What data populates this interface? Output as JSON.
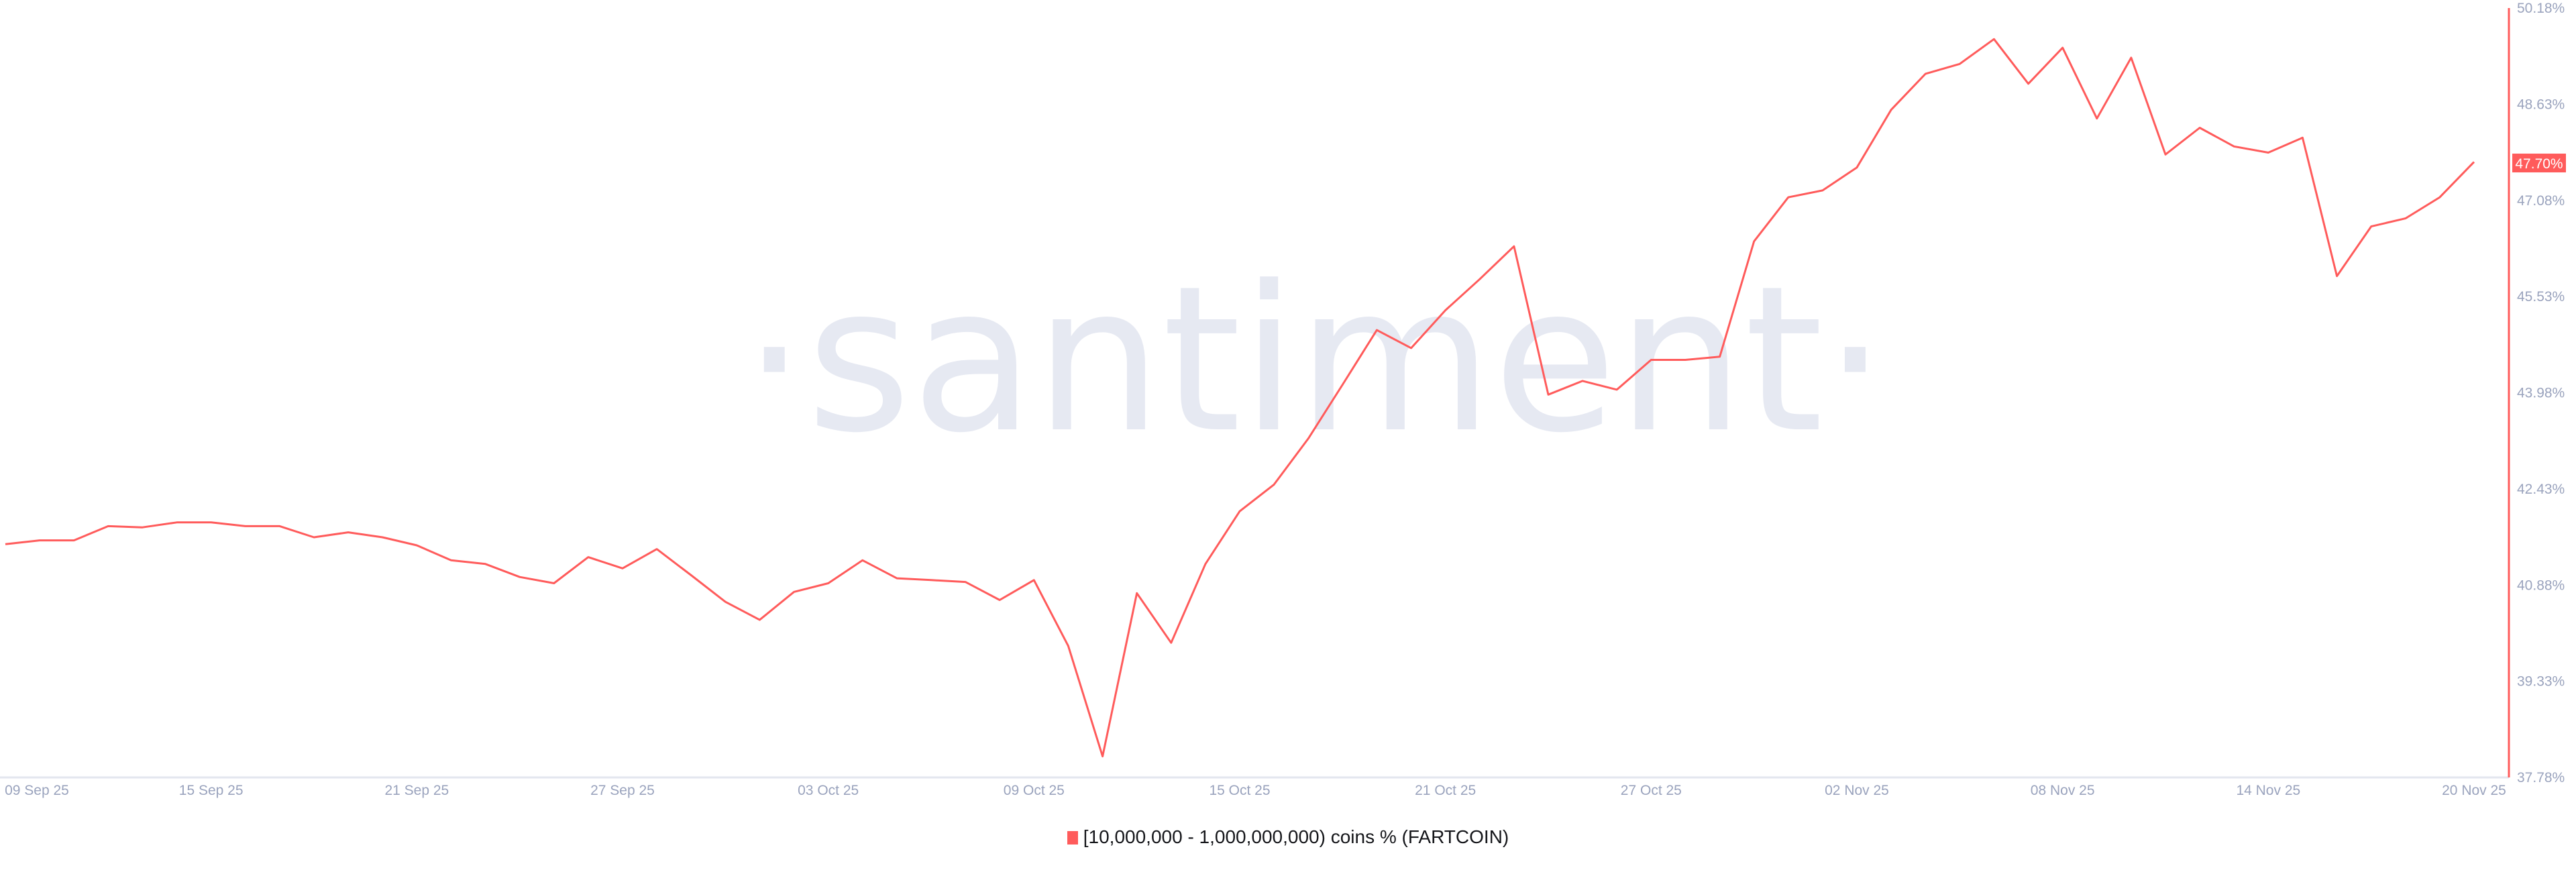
{
  "chart_data": {
    "type": "line",
    "watermark": "·santiment·",
    "series": [
      {
        "name": "[10,000,000 - 1,000,000,000) coins % (FARTCOIN)",
        "color": "#ff5b5b",
        "values": [
          41.54,
          41.6,
          41.6,
          41.83,
          41.81,
          41.89,
          41.89,
          41.83,
          41.83,
          41.65,
          41.73,
          41.65,
          41.52,
          41.28,
          41.22,
          41.01,
          40.91,
          41.33,
          41.15,
          41.46,
          41.04,
          40.61,
          40.32,
          40.77,
          40.91,
          41.28,
          40.99,
          40.96,
          40.93,
          40.64,
          40.96,
          39.9,
          38.12,
          40.75,
          39.95,
          41.22,
          42.07,
          42.5,
          43.24,
          44.11,
          44.99,
          44.7,
          45.31,
          45.81,
          46.34,
          43.95,
          44.17,
          44.03,
          44.51,
          44.51,
          44.56,
          46.42,
          47.13,
          47.24,
          47.61,
          48.54,
          49.12,
          49.28,
          49.68,
          48.96,
          49.54,
          48.4,
          49.38,
          47.82,
          48.25,
          47.95,
          47.85,
          48.09,
          45.86,
          46.66,
          46.79,
          47.13,
          47.7
        ]
      }
    ],
    "x_start": "2025-09-09",
    "x_end": "2025-11-20",
    "x_interval": "1 day",
    "x_tick_labels": [
      "09 Sep 25",
      "15 Sep 25",
      "21 Sep 25",
      "27 Sep 25",
      "03 Oct 25",
      "09 Oct 25",
      "15 Oct 25",
      "21 Oct 25",
      "27 Oct 25",
      "02 Nov 25",
      "08 Nov 25",
      "14 Nov 25",
      "20 Nov 25"
    ],
    "y_tick_labels": [
      "37.78%",
      "39.33%",
      "40.88%",
      "42.43%",
      "43.98%",
      "45.53%",
      "47.08%",
      "48.63%",
      "50.18%"
    ],
    "ylim": [
      37.78,
      50.18
    ],
    "y_axis_side": "right",
    "current_value_label": "47.70%",
    "grid": false,
    "legend_position": "bottom-center"
  }
}
